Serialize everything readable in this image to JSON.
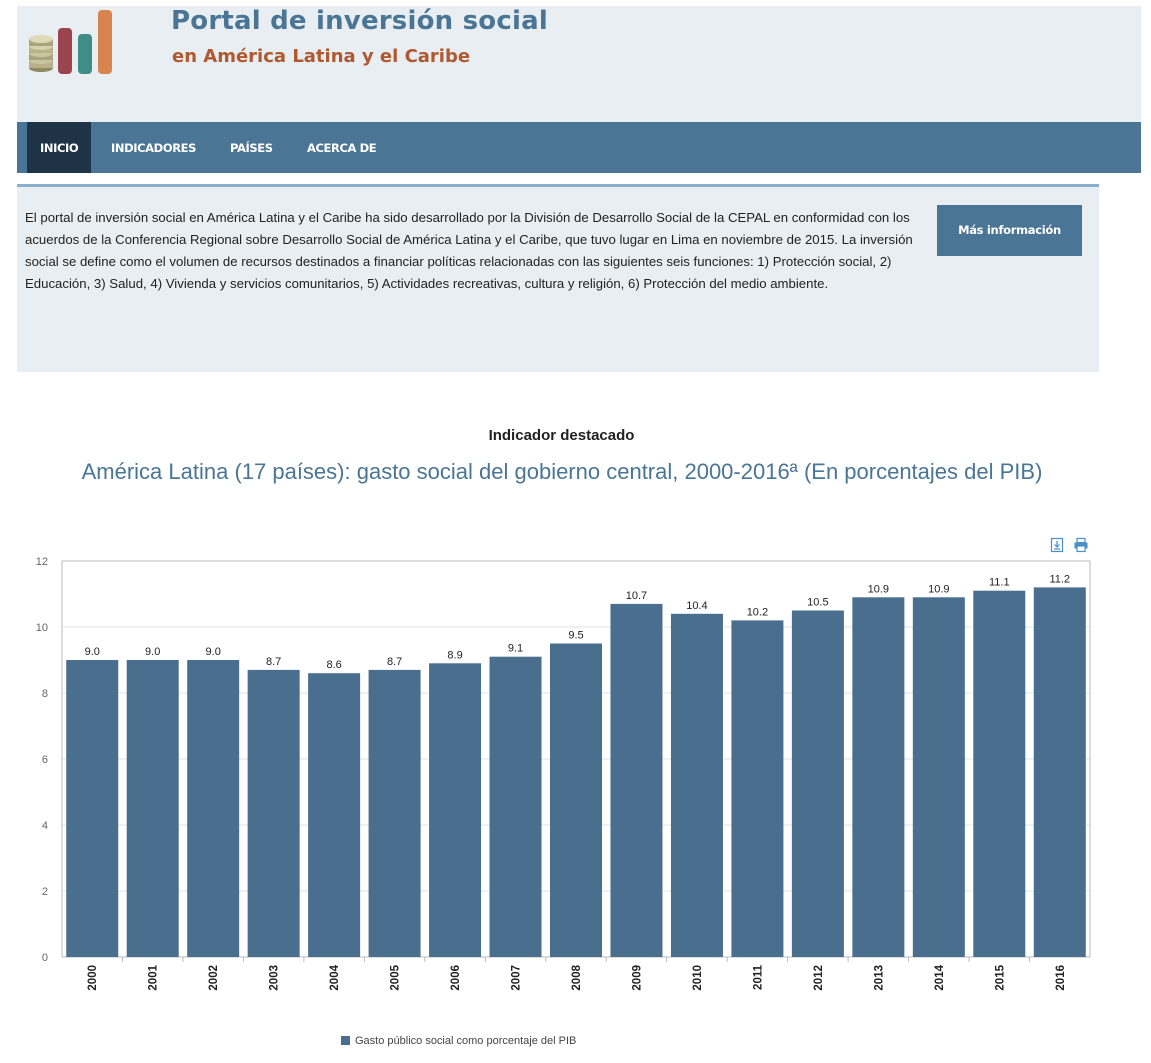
{
  "header": {
    "title": "Portal de inversión social",
    "subtitle": "en América Latina y el Caribe"
  },
  "nav": {
    "items": [
      {
        "label": "INICIO",
        "active": true
      },
      {
        "label": "INDICADORES"
      },
      {
        "label": "PAÍSES"
      },
      {
        "label": "ACERCA DE"
      }
    ]
  },
  "info": {
    "text": "El portal de inversión social en América Latina y el Caribe ha sido desarrollado por la División de Desarrollo Social de la CEPAL en conformidad con los acuerdos de la Conferencia Regional sobre Desarrollo Social de América Latina y el Caribe, que tuvo lugar en Lima en noviembre de 2015. La inversión social se define como el volumen de recursos destinados a financiar políticas relacionadas con las siguientes seis funciones: 1) Protección social, 2) Educación, 3) Salud, 4) Vivienda y servicios comunitarios, 5) Actividades recreativas, cultura y religión, 6) Protección del medio ambiente.",
    "button_label": "Más información"
  },
  "featured": {
    "label": "Indicador destacado",
    "title": "América Latina (17 países): gasto social del gobierno central, 2000-2016ª (En porcentajes del PIB)"
  },
  "tools": {
    "download_icon": "download-icon",
    "print_icon": "print-icon"
  },
  "colors": {
    "primary": "#4a7595",
    "bar": "#4a6f8e",
    "nav_active": "#1e3446",
    "accent": "#b0582f",
    "panel": "#e8eef2"
  },
  "chart_data": {
    "type": "bar",
    "categories": [
      "2000",
      "2001",
      "2002",
      "2003",
      "2004",
      "2005",
      "2006",
      "2007",
      "2008",
      "2009",
      "2010",
      "2011",
      "2012",
      "2013",
      "2014",
      "2015",
      "2016"
    ],
    "series": [
      {
        "name": "Gasto público social como porcentaje del PIB",
        "values": [
          9.0,
          9.0,
          9.0,
          8.7,
          8.6,
          8.7,
          8.9,
          9.1,
          9.5,
          10.7,
          10.4,
          10.2,
          10.5,
          10.9,
          10.9,
          11.1,
          11.2
        ]
      }
    ],
    "data_labels": [
      "9.0",
      "9.0",
      "9.0",
      "8.7",
      "8.6",
      "8.7",
      "8.9",
      "9.1",
      "9.5",
      "10.7",
      "10.4",
      "10.2",
      "10.5",
      "10.9",
      "10.9",
      "11.1",
      "11.2"
    ],
    "ylim": [
      0,
      12
    ],
    "yticks": [
      0,
      2,
      4,
      6,
      8,
      10,
      12
    ],
    "grid": true,
    "legend_position": "bottom-center"
  }
}
